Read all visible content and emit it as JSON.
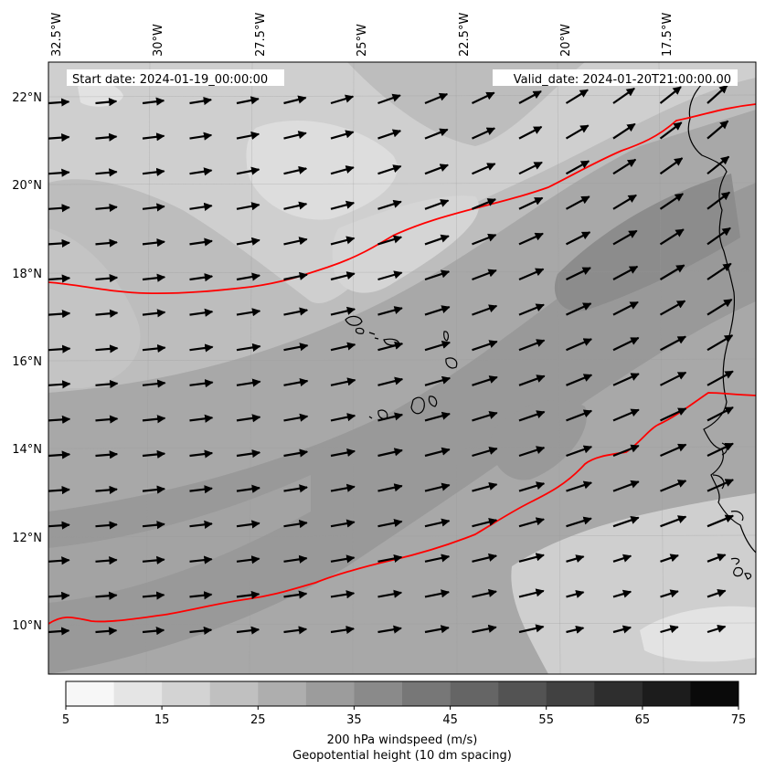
{
  "map": {
    "start_date": "Start date: 2024-01-19_00:00:00",
    "valid_date": "Valid_date: 2024-01-20T21:00:00.00",
    "lon_ticks": [
      "32.5°W",
      "30°W",
      "27.5°W",
      "25°W",
      "22.5°W",
      "20°W",
      "17.5°W"
    ],
    "lat_ticks": [
      "22°N",
      "20°N",
      "18°N",
      "16°N",
      "14°N",
      "12°N",
      "10°N"
    ],
    "colorbar": {
      "tick_labels": [
        "5",
        "15",
        "25",
        "35",
        "45",
        "55",
        "65",
        "75"
      ],
      "levels": [
        5,
        10,
        15,
        20,
        25,
        30,
        35,
        40,
        45,
        50,
        55,
        60,
        65,
        70,
        75
      ],
      "label": "200 hPa windspeed (m/s)",
      "sublabel": "Geopotential height (10 dm spacing)",
      "sublabel_color": "#ff0000"
    },
    "contour_color": "#ff0000",
    "coastline_color": "#000000",
    "vector_color": "#000000"
  }
}
